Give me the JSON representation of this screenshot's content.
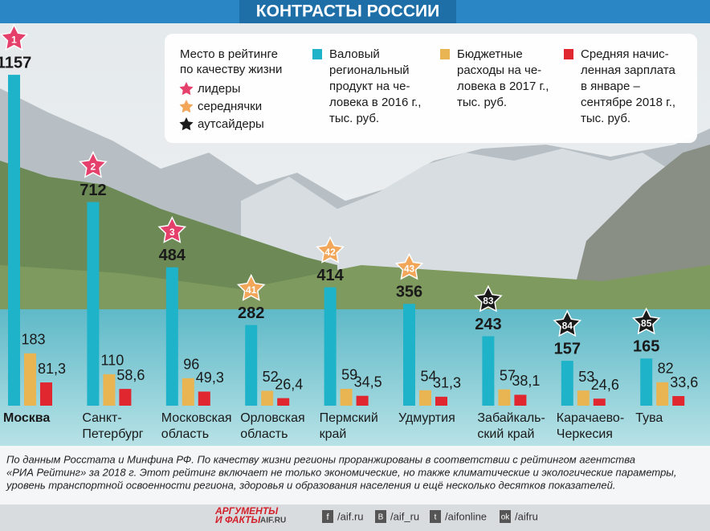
{
  "chart_data": {
    "type": "bar",
    "title": "КОНТРАСТЫ РОССИИ",
    "categories": [
      [
        "Москва"
      ],
      [
        "Санкт-",
        "Петербург"
      ],
      [
        "Московская",
        "область"
      ],
      [
        "Орловская",
        "область"
      ],
      [
        "Пермский",
        "край"
      ],
      [
        "Удмуртия"
      ],
      [
        "Забайкаль-",
        "ский край"
      ],
      [
        "Карачаево-",
        "Черкесия"
      ],
      [
        "Тува"
      ]
    ],
    "series": [
      {
        "name": [
          "Валовый",
          "региональный",
          "продукт на че-",
          "ловека в 2016 г.,",
          "тыс. руб."
        ],
        "color": "#1fb3c9",
        "values": [
          1157,
          712,
          484,
          282,
          414,
          356,
          243,
          157,
          165
        ]
      },
      {
        "name": [
          "Бюджетные",
          "расходы на че-",
          "ловека в 2017 г.,",
          "тыс. руб."
        ],
        "color": "#e9b552",
        "values": [
          183,
          110,
          96,
          52,
          59,
          54,
          57,
          53,
          82
        ]
      },
      {
        "name": [
          "Средняя начис-",
          "ленная зарплата",
          "в январе –",
          "сентябре 2018 г.,",
          "тыс. руб."
        ],
        "color": "#e0262f",
        "values": [
          81.3,
          58.6,
          49.3,
          26.4,
          34.5,
          31.3,
          38.1,
          24.6,
          33.6
        ],
        "value_labels": [
          "81,3",
          "58,6",
          "49,3",
          "26,4",
          "34,5",
          "31,3",
          "38,1",
          "24,6",
          "33,6"
        ]
      }
    ],
    "rank_legend": {
      "title": [
        "Место в рейтинге",
        "по качеству жизни"
      ],
      "groups": [
        {
          "name": "лидеры",
          "color": "#e5406b"
        },
        {
          "name": "середнячки",
          "color": "#f2a65a"
        },
        {
          "name": "аутсайдеры",
          "color": "#1a1a1a"
        }
      ]
    },
    "ranks": [
      1,
      2,
      3,
      41,
      42,
      43,
      83,
      84,
      85
    ],
    "rank_group": [
      0,
      0,
      0,
      1,
      1,
      1,
      2,
      2,
      2
    ],
    "note": [
      "По данным Росстата и Минфина РФ. По качеству жизни регионы проранжированы в соответствии с рейтингом агентства",
      "«РИА Рейтинг» за 2018 г. Этот рейтинг включает не только экономические, но также климатические и экологические параметры,",
      "уровень транспортной освоенности региона, здоровья и образования населения и ещё несколько десятков показателей."
    ],
    "footer": {
      "logo": [
        "АРГУМЕНТЫ",
        "И ФАКТЫ"
      ],
      "site": "AIF.RU",
      "links": [
        "/aif.ru",
        "/aif_ru",
        "/aifonline",
        "/aifru"
      ]
    }
  }
}
